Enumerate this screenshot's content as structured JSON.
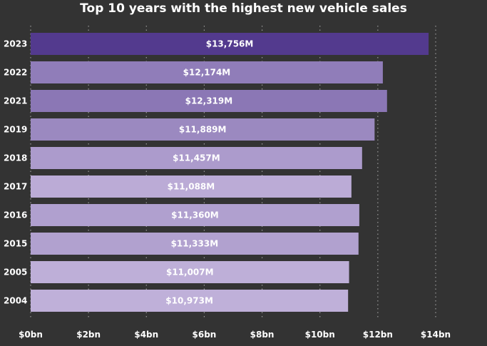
{
  "chart_data": {
    "type": "bar",
    "orientation": "horizontal",
    "title": "Top 10 years with the highest new vehicle sales",
    "categories": [
      "2023",
      "2022",
      "2021",
      "2019",
      "2018",
      "2017",
      "2016",
      "2015",
      "2005",
      "2004"
    ],
    "values": [
      13756,
      12174,
      12319,
      11889,
      11457,
      11088,
      11360,
      11333,
      11007,
      10973
    ],
    "data_labels": [
      "$13,756M",
      "$12,174M",
      "$12,319M",
      "$11,889M",
      "$11,457M",
      "$11,088M",
      "$11,360M",
      "$11,333M",
      "$11,007M",
      "$10,973M"
    ],
    "unit": "M",
    "xlim": [
      0,
      14000
    ],
    "x_ticks": [
      0,
      2000,
      4000,
      6000,
      8000,
      10000,
      12000,
      14000
    ],
    "x_tick_labels": [
      "$0bn",
      "$2bn",
      "$4bn",
      "$6bn",
      "$8bn",
      "$10bn",
      "$12bn",
      "$14bn"
    ],
    "grid": "vertical dotted",
    "legend": "none",
    "colors": {
      "background": "#333333",
      "bar_high": "#533A8E",
      "bar_low": "#BFB0D9",
      "gridline": "#9A9A9A",
      "text": "#FFFFFF"
    }
  }
}
